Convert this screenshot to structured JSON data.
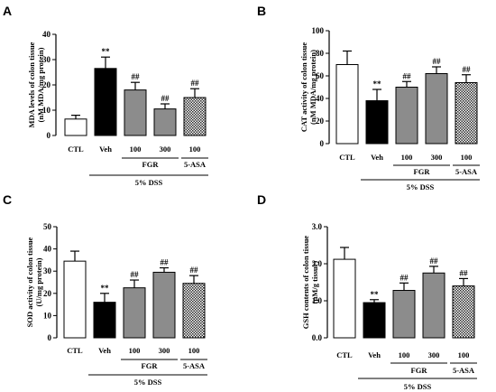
{
  "chart_data": [
    {
      "panel": "A",
      "type": "bar",
      "ylabel": [
        "MDA levels of colon tissue",
        "(nM MDA/mg protein)"
      ],
      "ylim": [
        0,
        40
      ],
      "yticks": [
        0,
        10,
        20,
        30,
        40
      ],
      "categories": [
        "CTL",
        "Veh",
        "100",
        "300",
        "100"
      ],
      "values": [
        6.5,
        26.5,
        18.0,
        10.5,
        15.0
      ],
      "errors": [
        1.5,
        4.5,
        3.0,
        2.0,
        3.5
      ],
      "significance": [
        "",
        "**",
        "##",
        "##",
        "##"
      ],
      "fills": [
        "white",
        "black",
        "gray",
        "gray",
        "checker"
      ],
      "groups": [
        {
          "label": "FGR",
          "start": 2,
          "end": 3
        },
        {
          "label": "5-ASA",
          "start": 4,
          "end": 4
        }
      ],
      "condition": {
        "label": "5% DSS",
        "start": 1,
        "end": 4
      }
    },
    {
      "panel": "B",
      "type": "bar",
      "ylabel": [
        "CAT activity of colon tissue",
        "(nM MDA/mg protein)"
      ],
      "ylim": [
        0,
        100
      ],
      "yticks": [
        0,
        20,
        40,
        60,
        80,
        100
      ],
      "categories": [
        "CTL",
        "Veh",
        "100",
        "300",
        "100"
      ],
      "values": [
        70,
        38,
        50,
        62,
        54
      ],
      "errors": [
        12,
        10,
        5,
        6,
        7
      ],
      "significance": [
        "",
        "**",
        "##",
        "##",
        "##"
      ],
      "fills": [
        "white",
        "black",
        "gray",
        "gray",
        "checker"
      ],
      "groups": [
        {
          "label": "FGR",
          "start": 2,
          "end": 3
        },
        {
          "label": "5-ASA",
          "start": 4,
          "end": 4
        }
      ],
      "condition": {
        "label": "5% DSS",
        "start": 1,
        "end": 4
      }
    },
    {
      "panel": "C",
      "type": "bar",
      "ylabel": [
        "SOD activity of colon tissue",
        "(U/mg protein)"
      ],
      "ylim": [
        0,
        50
      ],
      "yticks": [
        0,
        10,
        20,
        30,
        40,
        50
      ],
      "categories": [
        "CTL",
        "Veh",
        "100",
        "300",
        "100"
      ],
      "values": [
        34.5,
        16.0,
        22.5,
        29.5,
        24.5
      ],
      "errors": [
        4.5,
        4.0,
        3.5,
        2.0,
        3.5
      ],
      "significance": [
        "",
        "**",
        "##",
        "##",
        "##"
      ],
      "fills": [
        "white",
        "black",
        "gray",
        "gray",
        "checker"
      ],
      "groups": [
        {
          "label": "FGR",
          "start": 2,
          "end": 3
        },
        {
          "label": "5-ASA",
          "start": 4,
          "end": 4
        }
      ],
      "condition": {
        "label": "5% DSS",
        "start": 1,
        "end": 4
      }
    },
    {
      "panel": "D",
      "type": "bar",
      "ylabel": [
        "GSH contents of colon tissue",
        "(μM/g tissue)"
      ],
      "ylim": [
        0,
        3
      ],
      "yticks": [
        0.0,
        1.0,
        2.0,
        3.0
      ],
      "tickDecimals": 1,
      "categories": [
        "CTL",
        "Veh",
        "100",
        "300",
        "100"
      ],
      "values": [
        2.12,
        0.95,
        1.28,
        1.75,
        1.4
      ],
      "errors": [
        0.32,
        0.08,
        0.2,
        0.18,
        0.2
      ],
      "significance": [
        "",
        "**",
        "##",
        "##",
        "##"
      ],
      "fills": [
        "white",
        "black",
        "gray",
        "gray",
        "checker"
      ],
      "groups": [
        {
          "label": "FGR",
          "start": 2,
          "end": 3
        },
        {
          "label": "5-ASA",
          "start": 4,
          "end": 4
        }
      ],
      "condition": {
        "label": "5% DSS",
        "start": 1,
        "end": 4
      }
    }
  ],
  "colors": {
    "gray": "#8c8c8c",
    "black": "#000000",
    "white": "#ffffff",
    "checker_dark": "#2b2b2b"
  }
}
